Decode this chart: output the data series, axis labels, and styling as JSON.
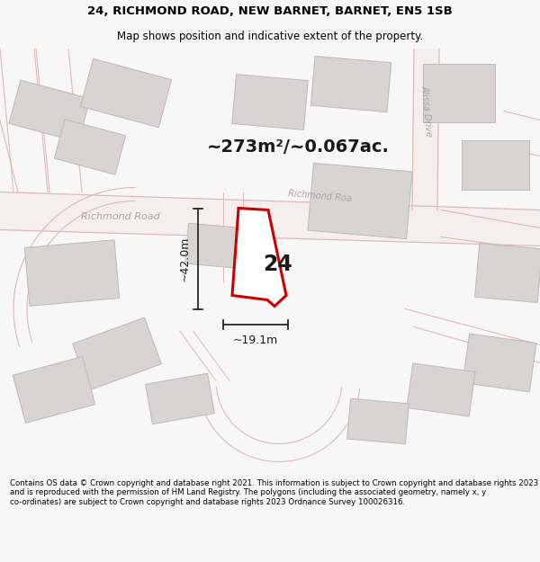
{
  "title_line1": "24, RICHMOND ROAD, NEW BARNET, BARNET, EN5 1SB",
  "title_line2": "Map shows position and indicative extent of the property.",
  "area_text": "~273m²/~0.067ac.",
  "plot_number": "24",
  "width_label": "~19.1m",
  "height_label": "~42.0m",
  "road_label_main": "Richmond Road",
  "road_label_diagonal": "Richmond Roa",
  "alissa_drive_label": "Alissa Drive",
  "footer_text": "Contains OS data © Crown copyright and database right 2021. This information is subject to Crown copyright and database rights 2023 and is reproduced with the permission of HM Land Registry. The polygons (including the associated geometry, namely x, y co-ordinates) are subject to Crown copyright and database rights 2023 Ordnance Survey 100026316.",
  "bg_color": "#f7f7f7",
  "map_bg": "#efefef",
  "plot_fill": "#ffffff",
  "plot_border": "#cc0000",
  "road_color": "#e0b8b8",
  "road_fill": "#f5eeee",
  "building_fill": "#d8d4d4",
  "building_border": "#c0b8b8",
  "dim_line_color": "#2a2a2a",
  "title_fontsize": 9.5,
  "subtitle_fontsize": 8.5,
  "area_fontsize": 15,
  "footer_fontsize": 6.2
}
